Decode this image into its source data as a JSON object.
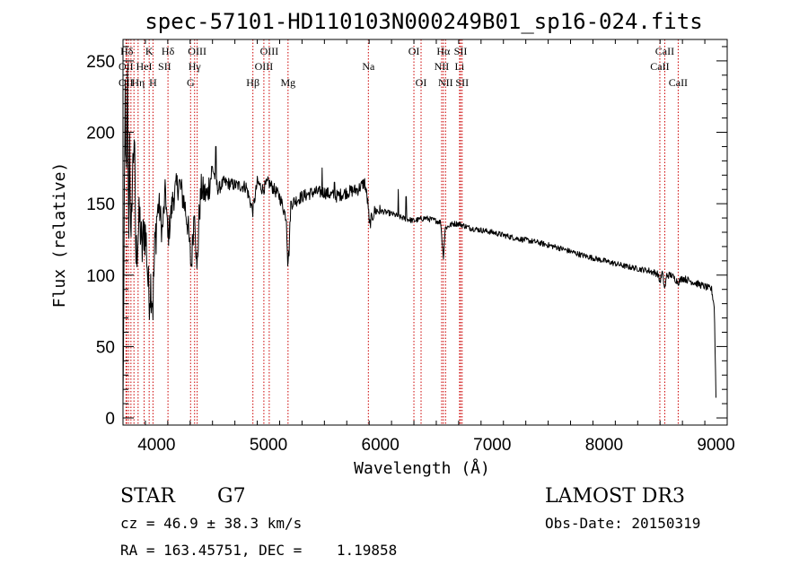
{
  "chart_data": {
    "type": "line",
    "title": "spec-57101-HD110103N000249B01_sp16-024.fits",
    "xlabel": "Wavelength (Å)",
    "ylabel": "Flux (relative)",
    "xlim": [
      3700,
      9100
    ],
    "ylim": [
      -5,
      265
    ],
    "xticks": [
      4000,
      5000,
      6000,
      7000,
      8000,
      9000
    ],
    "yticks": [
      0,
      50,
      100,
      150,
      200,
      250
    ],
    "series": [
      {
        "name": "flux",
        "anchors": [
          [
            3700,
            5
          ],
          [
            3710,
            120
          ],
          [
            3720,
            230
          ],
          [
            3730,
            150
          ],
          [
            3740,
            235
          ],
          [
            3750,
            120
          ],
          [
            3760,
            210
          ],
          [
            3770,
            100
          ],
          [
            3780,
            160
          ],
          [
            3800,
            200
          ],
          [
            3815,
            110
          ],
          [
            3830,
            125
          ],
          [
            3850,
            140
          ],
          [
            3870,
            115
          ],
          [
            3890,
            135
          ],
          [
            3910,
            120
          ],
          [
            3930,
            85
          ],
          [
            3950,
            95
          ],
          [
            3968,
            80
          ],
          [
            3980,
            110
          ],
          [
            4000,
            140
          ],
          [
            4020,
            150
          ],
          [
            4050,
            130
          ],
          [
            4080,
            160
          ],
          [
            4100,
            125
          ],
          [
            4150,
            155
          ],
          [
            4200,
            165
          ],
          [
            4250,
            150
          ],
          [
            4280,
            135
          ],
          [
            4310,
            105
          ],
          [
            4340,
            150
          ],
          [
            4360,
            100
          ],
          [
            4380,
            140
          ],
          [
            4400,
            160
          ],
          [
            4450,
            155
          ],
          [
            4500,
            175
          ],
          [
            4550,
            160
          ],
          [
            4600,
            165
          ],
          [
            4700,
            163
          ],
          [
            4800,
            162
          ],
          [
            4860,
            145
          ],
          [
            4900,
            165
          ],
          [
            4950,
            160
          ],
          [
            5000,
            165
          ],
          [
            5100,
            155
          ],
          [
            5160,
            140
          ],
          [
            5172,
            110
          ],
          [
            5183,
            115
          ],
          [
            5200,
            150
          ],
          [
            5300,
            155
          ],
          [
            5400,
            158
          ],
          [
            5500,
            158
          ],
          [
            5600,
            155
          ],
          [
            5700,
            158
          ],
          [
            5800,
            160
          ],
          [
            5860,
            165
          ],
          [
            5893,
            148
          ],
          [
            5900,
            135
          ],
          [
            5950,
            145
          ],
          [
            6000,
            145
          ],
          [
            6100,
            143
          ],
          [
            6200,
            140
          ],
          [
            6300,
            138
          ],
          [
            6400,
            140
          ],
          [
            6500,
            138
          ],
          [
            6540,
            137
          ],
          [
            6563,
            112
          ],
          [
            6580,
            133
          ],
          [
            6650,
            136
          ],
          [
            6700,
            136
          ],
          [
            6800,
            133
          ],
          [
            7000,
            130
          ],
          [
            7200,
            126
          ],
          [
            7400,
            123
          ],
          [
            7600,
            119
          ],
          [
            7800,
            114
          ],
          [
            8000,
            110
          ],
          [
            8200,
            106
          ],
          [
            8400,
            103
          ],
          [
            8480,
            101
          ],
          [
            8498,
            95
          ],
          [
            8520,
            102
          ],
          [
            8542,
            90
          ],
          [
            8560,
            100
          ],
          [
            8600,
            100
          ],
          [
            8662,
            95
          ],
          [
            8700,
            98
          ],
          [
            8800,
            95
          ],
          [
            8900,
            92
          ],
          [
            8960,
            90
          ],
          [
            8985,
            78
          ],
          [
            9000,
            15
          ]
        ],
        "spikes": [
          [
            4530,
            190
          ],
          [
            5480,
            175
          ],
          [
            5590,
            165
          ],
          [
            6160,
            160
          ],
          [
            6230,
            155
          ]
        ]
      }
    ],
    "lines_row1": [
      {
        "label": "Hδ",
        "wl": 3734
      },
      {
        "label": "K",
        "wl": 3934
      },
      {
        "label": "Hδ",
        "wl": 4102
      },
      {
        "label": "OIII",
        "wl": 4363
      },
      {
        "label": "OIII",
        "wl": 5007
      },
      {
        "label": "OI",
        "wl": 6300
      },
      {
        "label": "Hα",
        "wl": 6563
      },
      {
        "label": "SII",
        "wl": 6717
      },
      {
        "label": "CaII",
        "wl": 8542
      }
    ],
    "lines_row2": [
      {
        "label": "OII",
        "wl": 3727
      },
      {
        "label": "HeI",
        "wl": 3889
      },
      {
        "label": "SII",
        "wl": 4072
      },
      {
        "label": "Hγ",
        "wl": 4340
      },
      {
        "label": "OIII",
        "wl": 4959
      },
      {
        "label": "Na",
        "wl": 5893
      },
      {
        "label": "NII",
        "wl": 6548
      },
      {
        "label": "Li",
        "wl": 6708
      },
      {
        "label": "CaII",
        "wl": 8498
      }
    ],
    "lines_row3": [
      {
        "label": "OII",
        "wl": 3727
      },
      {
        "label": "Hη",
        "wl": 3835
      },
      {
        "label": "H",
        "wl": 3968
      },
      {
        "label": "G",
        "wl": 4304
      },
      {
        "label": "Hβ",
        "wl": 4861
      },
      {
        "label": "Mg",
        "wl": 5175
      },
      {
        "label": "OI",
        "wl": 6364
      },
      {
        "label": "NII",
        "wl": 6583
      },
      {
        "label": "SII",
        "wl": 6731
      },
      {
        "label": "CaII",
        "wl": 8662
      }
    ],
    "line_marker_wavelengths": [
      3727,
      3734,
      3750,
      3771,
      3798,
      3835,
      3889,
      3934,
      3968,
      4102,
      4304,
      4340,
      4363,
      4861,
      4959,
      5007,
      5175,
      5893,
      6300,
      6364,
      6548,
      6563,
      6583,
      6708,
      6717,
      6731,
      8498,
      8542,
      8662
    ],
    "colors": {
      "flux": "#000000",
      "marker": "#cc0000",
      "axes": "#000000"
    }
  },
  "info": {
    "object_class": "STAR",
    "subclass": "G7",
    "survey": "LAMOST DR3",
    "redshift": "cz = 46.9 ± 38.3 km/s",
    "obs_date": "Obs-Date: 20150319",
    "coords": "RA = 163.45751, DEC =    1.19858"
  }
}
